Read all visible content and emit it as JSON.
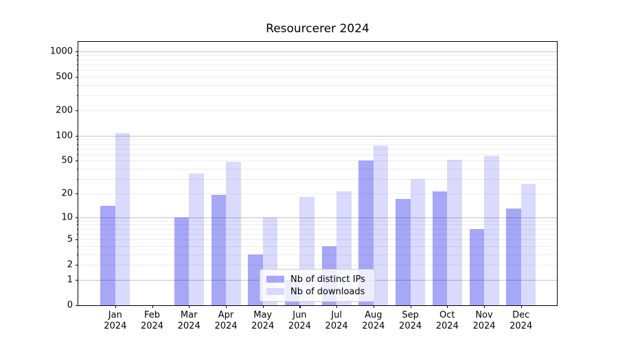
{
  "title": "Resourcerer 2024",
  "chart_data": {
    "type": "bar",
    "title": "Resourcerer 2024",
    "categories": [
      "Jan 2024",
      "Feb 2024",
      "Mar 2024",
      "Apr 2024",
      "May 2024",
      "Jun 2024",
      "Jul 2024",
      "Aug 2024",
      "Sep 2024",
      "Oct 2024",
      "Nov 2024",
      "Dec 2024"
    ],
    "series": [
      {
        "name": "Nb of distinct IPs",
        "values": [
          14,
          0,
          10,
          19,
          3,
          1,
          4,
          50,
          17,
          21,
          7,
          13
        ],
        "fill": "rgba(4,4,232,0.35)",
        "swatch": "#a7a7f7"
      },
      {
        "name": "Nb of downloads",
        "values": [
          107,
          0,
          35,
          48,
          10,
          18,
          21,
          76,
          30,
          51,
          58,
          26
        ],
        "fill": "rgba(4,4,232,0.15)",
        "swatch": "#d9d9fb"
      }
    ],
    "yscale": "log1p",
    "ylim": [
      0,
      1292
    ],
    "y_tick_labels": [
      "0",
      "1",
      "2",
      "5",
      "10",
      "20",
      "50",
      "100",
      "200",
      "500",
      "1000"
    ],
    "y_ticks_labeled": [
      0,
      1,
      2,
      5,
      10,
      20,
      50,
      100,
      200,
      500,
      1000
    ],
    "y_gridlines_major": [
      1,
      10,
      100,
      1000
    ],
    "grid": true,
    "legend_position": "inside-bottom-center",
    "grid_major_color": "#c2c2c2",
    "grid_minor_color": "#ededed"
  }
}
